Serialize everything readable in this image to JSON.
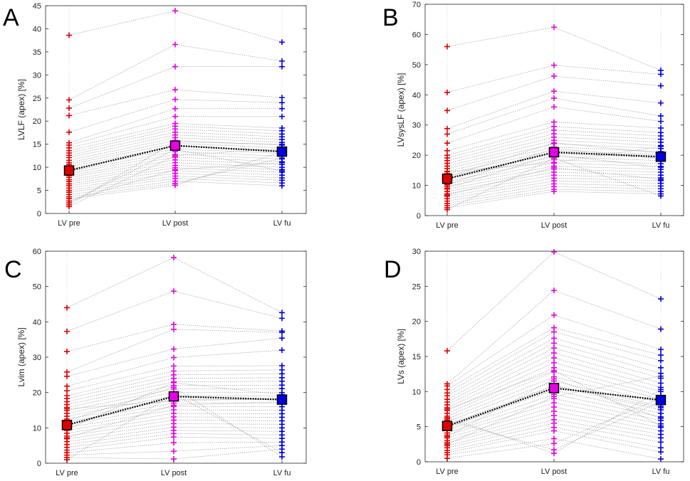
{
  "chart_data": [
    {
      "type": "line",
      "panel": "A",
      "ylabel": "LVLF (apex) [%]",
      "categories": [
        "LV pre",
        "LV post",
        "LV fu"
      ],
      "ylim": [
        0,
        45
      ],
      "yticks": [
        0,
        5,
        10,
        15,
        20,
        25,
        30,
        35,
        40,
        45
      ],
      "grid": "vertical dotted",
      "mean": [
        9.3,
        14.7,
        13.4
      ],
      "individual": {
        "pre": [
          38.6,
          24.6,
          22.8,
          21.2,
          17.6,
          15.3,
          14.8,
          14.2,
          13.6,
          13.1,
          12.6,
          12.1,
          11.5,
          11.0,
          10.6,
          10.1,
          9.6,
          9.1,
          8.7,
          8.2,
          7.8,
          7.3,
          6.9,
          6.4,
          6.0,
          5.5,
          5.0,
          4.6,
          4.1,
          3.6,
          3.2,
          2.7,
          2.3,
          1.9,
          1.5
        ],
        "post": [
          43.9,
          36.6,
          31.8,
          26.8,
          24.7,
          22.7,
          21.0,
          19.5,
          18.9,
          18.3,
          17.6,
          17.0,
          16.4,
          15.8,
          15.2,
          14.6,
          14.0,
          13.4,
          12.8,
          12.2,
          11.6,
          11.0,
          10.4,
          9.9,
          9.3,
          8.7,
          8.1,
          7.6,
          7.0,
          6.5,
          6.1,
          9.5,
          13.9,
          15.5,
          12.5
        ],
        "fu": [
          37.1,
          33.0,
          31.8,
          25.1,
          24.0,
          22.7,
          21.0,
          18.5,
          17.9,
          17.2,
          16.6,
          16.0,
          15.4,
          14.8,
          14.2,
          13.6,
          13.0,
          12.4,
          11.8,
          11.2,
          10.6,
          10.0,
          9.5,
          8.9,
          8.3,
          7.7,
          7.2,
          6.6,
          6.0,
          12.0,
          13.3,
          11.0,
          9.2,
          15.0,
          14.1
        ]
      },
      "colors": {
        "pre": "#e00000",
        "post": "#e600e6",
        "fu": "#0000e0",
        "mean_line": "#000000",
        "connector": "#8a8a8a"
      }
    },
    {
      "type": "line",
      "panel": "B",
      "ylabel": "LVsysLF (apex) [%]",
      "categories": [
        "LV pre",
        "LV post",
        "LV fu"
      ],
      "ylim": [
        0,
        70
      ],
      "yticks": [
        0,
        10,
        20,
        30,
        40,
        50,
        60,
        70
      ],
      "grid": "vertical dotted",
      "mean": [
        12.2,
        21.0,
        19.5
      ],
      "individual": {
        "pre": [
          56.0,
          40.8,
          34.8,
          28.8,
          27.0,
          24.0,
          21.5,
          20.0,
          19.1,
          18.2,
          17.3,
          16.4,
          15.6,
          14.7,
          13.9,
          13.0,
          12.2,
          11.3,
          10.5,
          9.7,
          8.8,
          8.0,
          7.2,
          6.4,
          5.6,
          4.8,
          4.0,
          3.3,
          2.6,
          2.0,
          10.2,
          12.8,
          14.5,
          9.1,
          6.8
        ],
        "post": [
          62.4,
          49.8,
          46.2,
          41.2,
          38.9,
          36.0,
          31.0,
          29.5,
          28.3,
          27.1,
          26.0,
          24.9,
          23.8,
          22.7,
          21.6,
          20.6,
          19.5,
          18.5,
          17.4,
          16.4,
          15.4,
          14.4,
          13.4,
          12.4,
          11.5,
          10.5,
          9.6,
          8.7,
          8.0,
          19.0,
          22.3,
          24.1,
          17.6,
          20.2,
          15.9
        ],
        "fu": [
          48.1,
          46.8,
          43.0,
          37.3,
          33.0,
          31.2,
          29.0,
          27.5,
          26.4,
          25.3,
          24.3,
          23.2,
          22.2,
          21.2,
          20.2,
          19.2,
          18.2,
          17.2,
          16.3,
          15.3,
          14.4,
          13.4,
          12.5,
          11.6,
          10.7,
          9.8,
          8.9,
          8.0,
          7.2,
          6.5,
          18.8,
          20.7,
          22.9,
          16.0,
          12.0
        ]
      },
      "colors": {
        "pre": "#e00000",
        "post": "#e600e6",
        "fu": "#0000e0",
        "mean_line": "#000000",
        "connector": "#8a8a8a"
      }
    },
    {
      "type": "line",
      "panel": "C",
      "ylabel": "Lvim (apex) [%]",
      "categories": [
        "LV pre",
        "LV post",
        "LV fu"
      ],
      "ylim": [
        0,
        60
      ],
      "yticks": [
        0,
        10,
        20,
        30,
        40,
        50,
        60
      ],
      "grid": "vertical dotted",
      "mean": [
        10.8,
        18.9,
        18.0
      ],
      "individual": {
        "pre": [
          44.0,
          37.3,
          31.6,
          25.8,
          24.6,
          21.8,
          20.5,
          19.1,
          18.3,
          17.4,
          16.6,
          15.8,
          14.9,
          14.1,
          13.3,
          12.5,
          11.7,
          10.9,
          10.1,
          9.3,
          8.5,
          7.7,
          6.9,
          6.1,
          5.3,
          4.5,
          3.7,
          3.0,
          2.3,
          1.6,
          1.0,
          12.0,
          15.4,
          9.6,
          7.2
        ],
        "post": [
          58.2,
          48.7,
          39.3,
          37.9,
          32.3,
          29.9,
          27.5,
          26.1,
          25.0,
          24.0,
          23.0,
          22.0,
          21.0,
          20.0,
          19.0,
          18.0,
          17.0,
          16.1,
          15.1,
          14.1,
          13.1,
          12.2,
          11.2,
          10.2,
          9.3,
          8.4,
          7.4,
          5.8,
          3.4,
          1.2,
          19.6,
          21.5,
          17.6,
          22.8,
          16.4
        ],
        "fu": [
          42.6,
          41.0,
          37.4,
          37.0,
          35.4,
          32.0,
          27.6,
          26.4,
          25.3,
          24.2,
          23.2,
          22.1,
          21.1,
          20.0,
          19.0,
          18.0,
          17.0,
          16.0,
          15.0,
          14.0,
          13.0,
          12.0,
          11.0,
          10.0,
          9.0,
          8.0,
          7.0,
          6.0,
          5.0,
          4.0,
          3.0,
          1.8,
          18.4,
          19.4,
          17.4
        ]
      },
      "colors": {
        "pre": "#e00000",
        "post": "#e600e6",
        "fu": "#0000e0",
        "mean_line": "#000000",
        "connector": "#8a8a8a"
      }
    },
    {
      "type": "line",
      "panel": "D",
      "ylabel": "LVs (apex) [%]",
      "categories": [
        "LV pre",
        "LV post",
        "LV fu"
      ],
      "ylim": [
        0,
        30
      ],
      "yticks": [
        0,
        5,
        10,
        15,
        20,
        25,
        30
      ],
      "grid": "vertical dotted",
      "mean": [
        5.1,
        10.5,
        8.8
      ],
      "individual": {
        "pre": [
          15.8,
          11.1,
          10.8,
          10.3,
          9.8,
          9.4,
          8.9,
          8.5,
          8.1,
          7.7,
          7.3,
          6.9,
          6.5,
          6.1,
          5.7,
          5.3,
          4.9,
          4.5,
          4.1,
          3.8,
          3.4,
          3.0,
          2.7,
          2.3,
          2.0,
          1.6,
          1.3,
          1.0,
          0.5,
          5.9,
          6.3,
          4.7,
          3.6,
          2.5,
          7.5
        ],
        "post": [
          29.9,
          24.4,
          20.9,
          19.1,
          18.5,
          17.6,
          16.9,
          16.2,
          15.5,
          14.8,
          14.1,
          13.4,
          12.8,
          12.1,
          11.5,
          10.8,
          10.2,
          9.6,
          9.0,
          8.4,
          7.8,
          7.2,
          6.6,
          6.0,
          5.5,
          4.9,
          4.4,
          3.3,
          2.6,
          1.7,
          1.2,
          10.9,
          11.8,
          9.3,
          13.0
        ],
        "fu": [
          23.2,
          18.9,
          16.0,
          15.2,
          14.4,
          13.4,
          12.6,
          11.9,
          11.2,
          10.6,
          10.0,
          9.4,
          8.9,
          8.4,
          7.9,
          7.4,
          6.9,
          6.4,
          5.9,
          5.4,
          4.9,
          4.4,
          3.9,
          3.4,
          2.8,
          2.0,
          1.4,
          0.4,
          9.1,
          8.6,
          10.3,
          7.7,
          6.2,
          12.2,
          5.1
        ]
      },
      "colors": {
        "pre": "#e00000",
        "post": "#e600e6",
        "fu": "#0000e0",
        "mean_line": "#000000",
        "connector": "#8a8a8a"
      }
    }
  ]
}
